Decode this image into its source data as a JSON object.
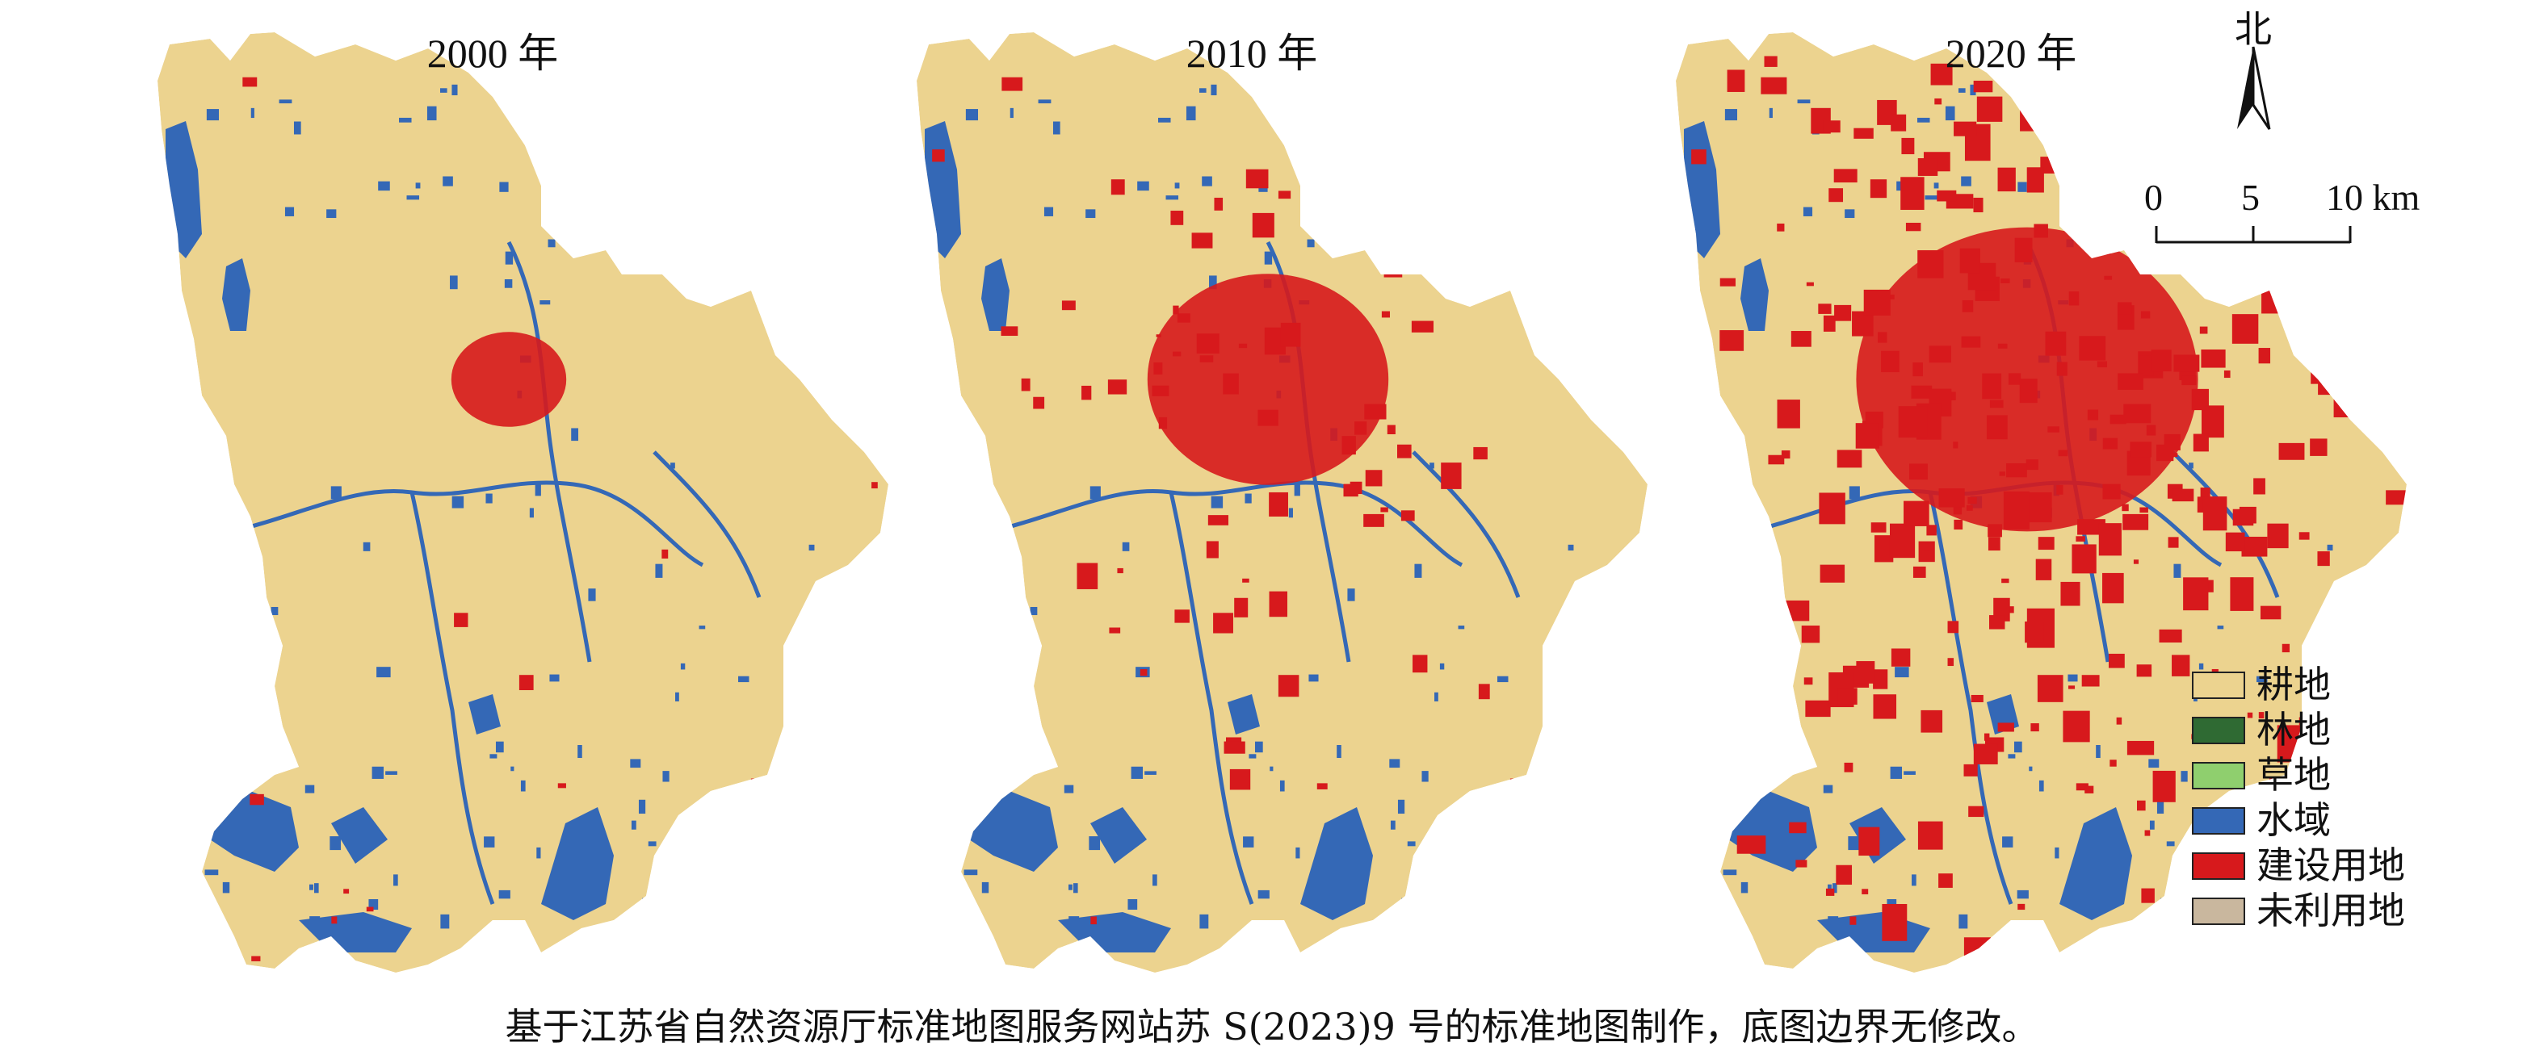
{
  "panels": [
    {
      "title": "2000 年",
      "urban_level": 0.12
    },
    {
      "title": "2010 年",
      "urban_level": 0.42
    },
    {
      "title": "2020 年",
      "urban_level": 0.66
    }
  ],
  "north_arrow": {
    "label": "北"
  },
  "scale_bar": {
    "ticks": [
      "0",
      "5",
      "10 km"
    ]
  },
  "legend": [
    {
      "label": "耕地",
      "color": "#ecd38f"
    },
    {
      "label": "林地",
      "color": "#2f6a33"
    },
    {
      "label": "草地",
      "color": "#8fcf6e"
    },
    {
      "label": "水域",
      "color": "#3468b6"
    },
    {
      "label": "建设用地",
      "color": "#d7191c"
    },
    {
      "label": "未利用地",
      "color": "#c9b79e"
    }
  ],
  "caption": "基于江苏省自然资源厅标准地图服务网站苏 S(2023)9 号的标准地图制作，底图边界无修改。"
}
